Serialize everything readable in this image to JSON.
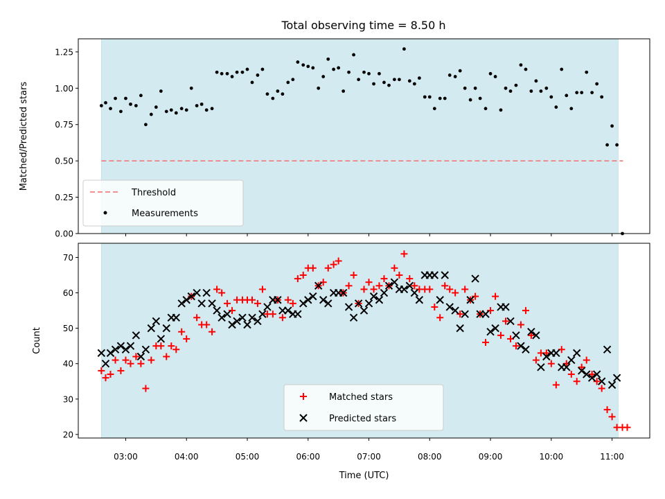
{
  "chart_data": {
    "title": "Total observing time = 8.50 h",
    "shared_x": {
      "label": "Time (UTC)",
      "range_hours": [
        2.22,
        11.62
      ],
      "ticks": [
        3,
        4,
        5,
        6,
        7,
        8,
        9,
        10,
        11
      ],
      "tick_labels": [
        "03:00",
        "04:00",
        "05:00",
        "06:00",
        "07:00",
        "08:00",
        "09:00",
        "10:00",
        "11:00"
      ],
      "observing_window_hours": [
        2.6,
        11.1
      ],
      "window_color": "#d3eaf1"
    },
    "panels": [
      {
        "type": "scatter",
        "ylabel": "Matched/Predicted stars",
        "ylim": [
          0,
          1.34
        ],
        "yticks": [
          0,
          0.25,
          0.5,
          0.75,
          1.0,
          1.25
        ],
        "ytick_labels": [
          "0.00",
          "0.25",
          "0.50",
          "0.75",
          "1.00",
          "1.25"
        ],
        "legend": {
          "position": "lower-left",
          "entries": [
            "Threshold",
            "Measurements"
          ]
        },
        "threshold": {
          "name": "Threshold",
          "value": 0.5,
          "color": "#f08080",
          "style": "dashed"
        },
        "series": [
          {
            "name": "Measurements",
            "color": "#000000",
            "marker": "dot",
            "x": [
              2.6,
              2.67,
              2.75,
              2.83,
              2.92,
              3.0,
              3.08,
              3.17,
              3.25,
              3.33,
              3.42,
              3.5,
              3.58,
              3.67,
              3.75,
              3.83,
              3.92,
              4.0,
              4.08,
              4.17,
              4.25,
              4.33,
              4.42,
              4.5,
              4.58,
              4.67,
              4.75,
              4.83,
              4.92,
              5.0,
              5.08,
              5.17,
              5.25,
              5.33,
              5.42,
              5.5,
              5.58,
              5.67,
              5.75,
              5.83,
              5.92,
              6.0,
              6.08,
              6.17,
              6.25,
              6.33,
              6.42,
              6.5,
              6.58,
              6.67,
              6.75,
              6.83,
              6.92,
              7.0,
              7.08,
              7.17,
              7.25,
              7.33,
              7.42,
              7.5,
              7.58,
              7.67,
              7.75,
              7.83,
              7.92,
              8.0,
              8.08,
              8.17,
              8.25,
              8.33,
              8.42,
              8.5,
              8.58,
              8.67,
              8.75,
              8.83,
              8.92,
              9.0,
              9.08,
              9.17,
              9.25,
              9.33,
              9.42,
              9.5,
              9.58,
              9.67,
              9.75,
              9.83,
              9.92,
              10.0,
              10.08,
              10.17,
              10.25,
              10.33,
              10.42,
              10.5,
              10.58,
              10.67,
              10.75,
              10.83,
              10.92,
              11.0,
              11.08,
              11.17
            ],
            "y": [
              0.88,
              0.9,
              0.86,
              0.93,
              0.84,
              0.93,
              0.89,
              0.88,
              0.95,
              0.75,
              0.82,
              0.87,
              0.98,
              0.84,
              0.85,
              0.83,
              0.86,
              0.85,
              1.0,
              0.88,
              0.89,
              0.85,
              0.86,
              1.11,
              1.1,
              1.1,
              1.08,
              1.11,
              1.11,
              1.13,
              1.04,
              1.09,
              1.13,
              0.96,
              0.93,
              0.98,
              0.96,
              1.04,
              1.06,
              1.18,
              1.16,
              1.15,
              1.14,
              1.0,
              1.08,
              1.2,
              1.13,
              1.14,
              0.98,
              1.11,
              1.23,
              1.06,
              1.11,
              1.1,
              1.03,
              1.1,
              1.04,
              1.02,
              1.06,
              1.06,
              1.27,
              1.05,
              1.03,
              1.07,
              0.94,
              0.94,
              0.86,
              0.93,
              0.93,
              1.09,
              1.08,
              1.12,
              1.0,
              0.92,
              1.0,
              0.93,
              0.86,
              1.1,
              1.08,
              0.85,
              1.0,
              0.98,
              1.02,
              1.16,
              1.13,
              0.98,
              1.05,
              0.98,
              1.0,
              0.94,
              0.87,
              1.13,
              0.95,
              0.86,
              0.97,
              0.97,
              1.11,
              0.97,
              1.03,
              0.94,
              0.61,
              0.74,
              0.61,
              0.0
            ]
          }
        ]
      },
      {
        "type": "scatter",
        "ylabel": "Count",
        "ylim": [
          19,
          74
        ],
        "yticks": [
          20,
          30,
          40,
          50,
          60,
          70
        ],
        "ytick_labels": [
          "20",
          "30",
          "40",
          "50",
          "60",
          "70"
        ],
        "legend": {
          "position": "lower-center",
          "entries": [
            "Matched stars",
            "Predicted stars"
          ]
        },
        "series": [
          {
            "name": "Matched stars",
            "color": "#ff0000",
            "marker": "plus",
            "x": [
              2.6,
              2.67,
              2.75,
              2.83,
              2.92,
              3.0,
              3.08,
              3.17,
              3.25,
              3.33,
              3.42,
              3.5,
              3.58,
              3.67,
              3.75,
              3.83,
              3.92,
              4.0,
              4.08,
              4.17,
              4.25,
              4.33,
              4.42,
              4.5,
              4.58,
              4.67,
              4.75,
              4.83,
              4.92,
              5.0,
              5.08,
              5.17,
              5.25,
              5.33,
              5.42,
              5.5,
              5.58,
              5.67,
              5.75,
              5.83,
              5.92,
              6.0,
              6.08,
              6.17,
              6.25,
              6.33,
              6.42,
              6.5,
              6.58,
              6.67,
              6.75,
              6.83,
              6.92,
              7.0,
              7.08,
              7.17,
              7.25,
              7.33,
              7.42,
              7.5,
              7.58,
              7.67,
              7.75,
              7.83,
              7.92,
              8.0,
              8.08,
              8.17,
              8.25,
              8.33,
              8.42,
              8.5,
              8.58,
              8.67,
              8.75,
              8.83,
              8.92,
              9.0,
              9.08,
              9.17,
              9.25,
              9.33,
              9.42,
              9.5,
              9.58,
              9.67,
              9.75,
              9.83,
              9.92,
              10.0,
              10.08,
              10.17,
              10.25,
              10.33,
              10.42,
              10.5,
              10.58,
              10.67,
              10.75,
              10.83,
              10.92,
              11.0,
              11.08,
              11.17,
              11.25
            ],
            "y": [
              38,
              36,
              37,
              41,
              38,
              41,
              40,
              42,
              40,
              33,
              41,
              45,
              45,
              42,
              45,
              44,
              49,
              47,
              59,
              53,
              51,
              51,
              49,
              61,
              60,
              57,
              55,
              58,
              58,
              58,
              58,
              57,
              61,
              54,
              54,
              58,
              53,
              58,
              57,
              64,
              65,
              67,
              67,
              62,
              63,
              67,
              68,
              69,
              60,
              62,
              65,
              57,
              61,
              63,
              61,
              62,
              64,
              62,
              67,
              65,
              71,
              64,
              62,
              61,
              61,
              61,
              56,
              53,
              62,
              61,
              60,
              54,
              61,
              58,
              59,
              54,
              46,
              55,
              59,
              48,
              52,
              47,
              45,
              51,
              55,
              48,
              41,
              43,
              43,
              40,
              34,
              44,
              40,
              37,
              35,
              39,
              41,
              37,
              35,
              33,
              27,
              25,
              22,
              22,
              22
            ]
          },
          {
            "name": "Predicted stars",
            "color": "#000000",
            "marker": "x",
            "x": [
              2.6,
              2.67,
              2.75,
              2.83,
              2.92,
              3.0,
              3.08,
              3.17,
              3.25,
              3.33,
              3.42,
              3.5,
              3.58,
              3.67,
              3.75,
              3.83,
              3.92,
              4.0,
              4.08,
              4.17,
              4.25,
              4.33,
              4.42,
              4.5,
              4.58,
              4.67,
              4.75,
              4.83,
              4.92,
              5.0,
              5.08,
              5.17,
              5.25,
              5.33,
              5.42,
              5.5,
              5.58,
              5.67,
              5.75,
              5.83,
              5.92,
              6.0,
              6.08,
              6.17,
              6.25,
              6.33,
              6.42,
              6.5,
              6.58,
              6.67,
              6.75,
              6.83,
              6.92,
              7.0,
              7.08,
              7.17,
              7.25,
              7.33,
              7.42,
              7.5,
              7.58,
              7.67,
              7.75,
              7.83,
              7.92,
              8.0,
              8.08,
              8.17,
              8.25,
              8.33,
              8.42,
              8.5,
              8.58,
              8.67,
              8.75,
              8.83,
              8.92,
              9.0,
              9.08,
              9.17,
              9.25,
              9.33,
              9.42,
              9.5,
              9.58,
              9.67,
              9.75,
              9.83,
              9.92,
              10.0,
              10.08,
              10.17,
              10.25,
              10.33,
              10.42,
              10.5,
              10.58,
              10.67,
              10.75,
              10.83,
              10.92,
              11.0,
              11.08
            ],
            "y": [
              43,
              40,
              43,
              44,
              45,
              44,
              45,
              48,
              42,
              44,
              50,
              52,
              47,
              50,
              53,
              53,
              57,
              58,
              59,
              60,
              57,
              60,
              57,
              55,
              53,
              54,
              51,
              52,
              53,
              51,
              53,
              52,
              54,
              56,
              58,
              58,
              55,
              55,
              54,
              54,
              57,
              58,
              59,
              62,
              58,
              57,
              60,
              60,
              60,
              56,
              53,
              57,
              55,
              57,
              59,
              58,
              60,
              62,
              63,
              61,
              61,
              62,
              60,
              58,
              65,
              65,
              65,
              58,
              65,
              56,
              55,
              50,
              54,
              58,
              64,
              54,
              54,
              49,
              50,
              56,
              56,
              52,
              48,
              45,
              44,
              49,
              48,
              39,
              42,
              43,
              43,
              39,
              39,
              41,
              43,
              38,
              37,
              36,
              37,
              35,
              44,
              34,
              36
            ]
          }
        ]
      }
    ]
  }
}
